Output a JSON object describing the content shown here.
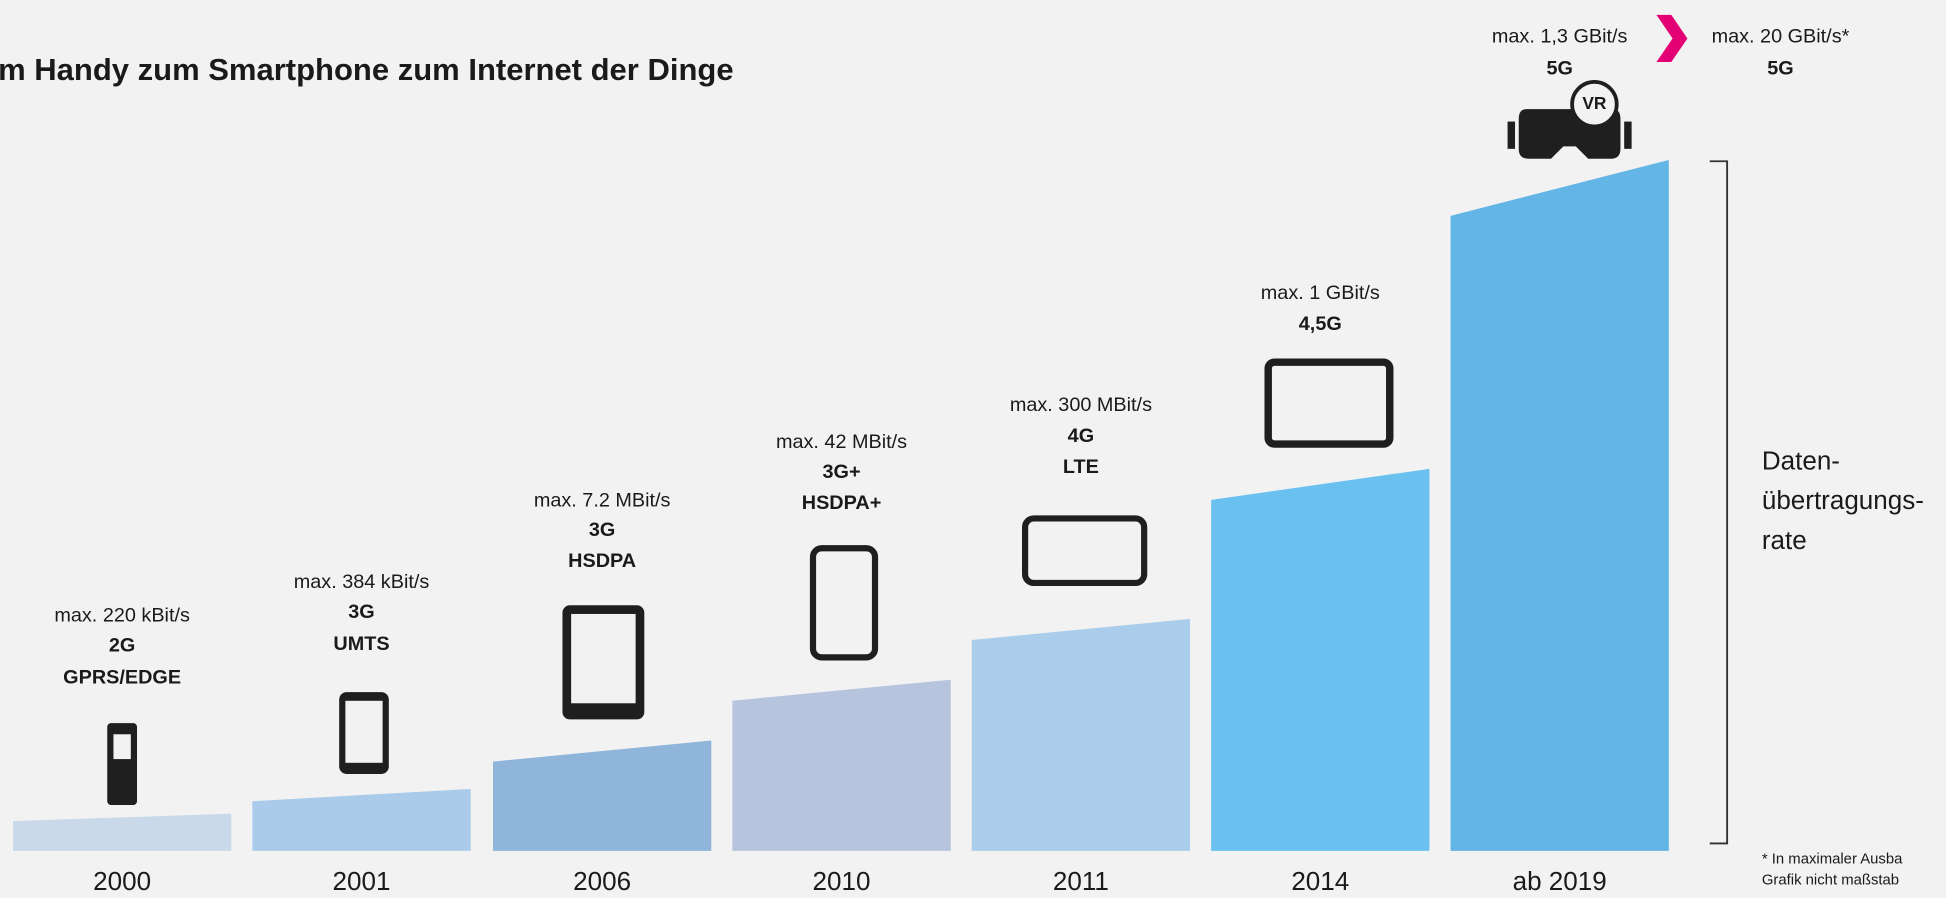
{
  "title": "m Handy zum Smartphone zum Internet der Dinge",
  "columns": [
    {
      "year": "2000",
      "speed": "max. 220 kBit/s",
      "generation": "2G",
      "technology": "GPRS/EDGE"
    },
    {
      "year": "2001",
      "speed": "max. 384 kBit/s",
      "generation": "3G",
      "technology": "UMTS"
    },
    {
      "year": "2006",
      "speed": "max. 7.2 MBit/s",
      "generation": "3G",
      "technology": "HSDPA"
    },
    {
      "year": "2010",
      "speed": "max. 42 MBit/s",
      "generation": "3G+",
      "technology": "HSDPA+"
    },
    {
      "year": "2011",
      "speed": "max. 300 MBit/s",
      "generation": "4G",
      "technology": "LTE"
    },
    {
      "year": "2014",
      "speed": "max. 1 GBit/s",
      "generation": "4,5G"
    },
    {
      "year": "ab 2019",
      "speed": "max. 1,3 GBit/s",
      "generation": "5G",
      "icon_label": "VR"
    }
  ],
  "future": {
    "speed": "max. 20 GBit/s*",
    "generation": "5G"
  },
  "axis_label": [
    "Daten-",
    "übertragungs-",
    "rate"
  ],
  "footnote": [
    "* In maximaler Ausba",
    "Grafik nicht maßstab"
  ]
}
